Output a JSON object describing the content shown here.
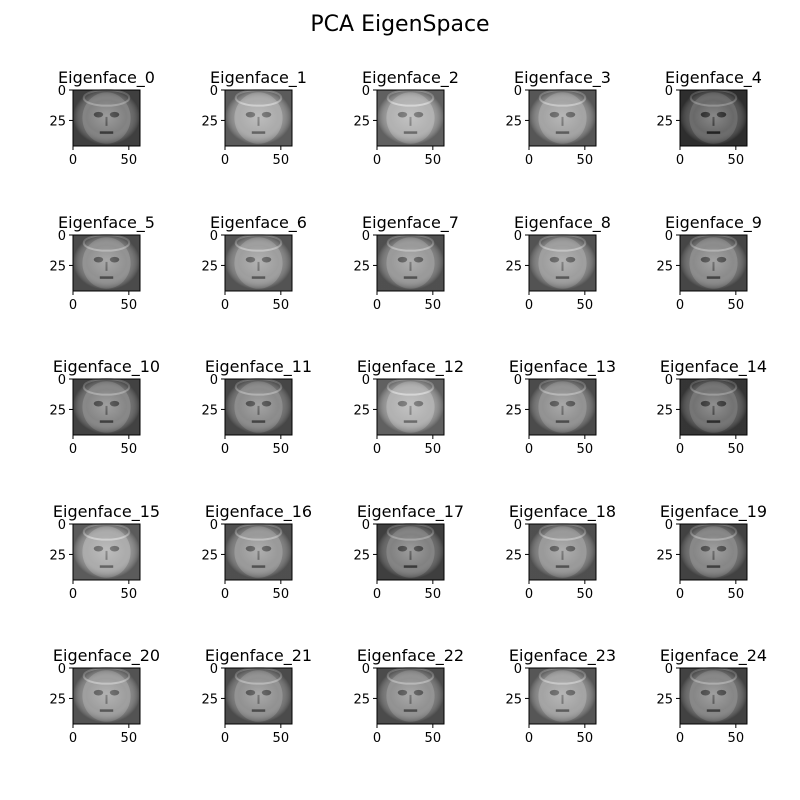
{
  "figure": {
    "title": "PCA EigenSpace"
  },
  "chart_data": {
    "type": "image-grid",
    "rows": 5,
    "cols": 5,
    "image_shape": [
      46,
      56
    ],
    "xlim": [
      0,
      60
    ],
    "ylim": [
      46,
      0
    ],
    "x_ticks": [
      0,
      50
    ],
    "y_ticks": [
      0,
      25
    ],
    "colormap": "gray",
    "panels": [
      {
        "title": "Eigenface_0",
        "tone": 0.38
      },
      {
        "title": "Eigenface_1",
        "tone": 0.55
      },
      {
        "title": "Eigenface_2",
        "tone": 0.58
      },
      {
        "title": "Eigenface_3",
        "tone": 0.52
      },
      {
        "title": "Eigenface_4",
        "tone": 0.28
      },
      {
        "title": "Eigenface_5",
        "tone": 0.45
      },
      {
        "title": "Eigenface_6",
        "tone": 0.5
      },
      {
        "title": "Eigenface_7",
        "tone": 0.48
      },
      {
        "title": "Eigenface_8",
        "tone": 0.5
      },
      {
        "title": "Eigenface_9",
        "tone": 0.42
      },
      {
        "title": "Eigenface_10",
        "tone": 0.4
      },
      {
        "title": "Eigenface_11",
        "tone": 0.42
      },
      {
        "title": "Eigenface_12",
        "tone": 0.58
      },
      {
        "title": "Eigenface_13",
        "tone": 0.45
      },
      {
        "title": "Eigenface_14",
        "tone": 0.32
      },
      {
        "title": "Eigenface_15",
        "tone": 0.55
      },
      {
        "title": "Eigenface_16",
        "tone": 0.48
      },
      {
        "title": "Eigenface_17",
        "tone": 0.38
      },
      {
        "title": "Eigenface_18",
        "tone": 0.48
      },
      {
        "title": "Eigenface_19",
        "tone": 0.4
      },
      {
        "title": "Eigenface_20",
        "tone": 0.5
      },
      {
        "title": "Eigenface_21",
        "tone": 0.45
      },
      {
        "title": "Eigenface_22",
        "tone": 0.45
      },
      {
        "title": "Eigenface_23",
        "tone": 0.52
      },
      {
        "title": "Eigenface_24",
        "tone": 0.4
      }
    ]
  }
}
